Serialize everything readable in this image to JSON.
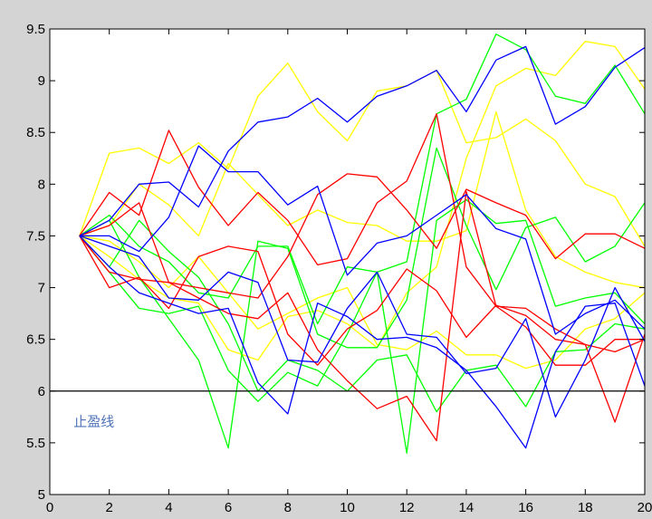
{
  "chart_data": {
    "type": "line",
    "title": "",
    "xlabel": "",
    "ylabel": "",
    "xlim": [
      0,
      20
    ],
    "ylim": [
      5,
      9.5
    ],
    "x_ticks": [
      "0",
      "2",
      "4",
      "6",
      "8",
      "10",
      "12",
      "14",
      "16",
      "18",
      "20"
    ],
    "y_ticks": [
      "5",
      "5.5",
      "6",
      "6.5",
      "7",
      "7.5",
      "8",
      "8.5",
      "9",
      "9.5"
    ],
    "grid": false,
    "background": "#ffffff",
    "reference_line": {
      "y": 6.0,
      "color": "#000000"
    },
    "annotation": {
      "text": "止盈线",
      "x": 0.8,
      "y": 5.66,
      "color": "#4f73b8"
    },
    "x": [
      1,
      2,
      3,
      4,
      5,
      6,
      7,
      8,
      9,
      10,
      11,
      12,
      13,
      14,
      15,
      16,
      17,
      18,
      19,
      20
    ],
    "series": [
      {
        "color": "#ffff00",
        "values": [
          7.5,
          8.3,
          8.35,
          8.2,
          8.4,
          8.15,
          8.85,
          9.17,
          8.7,
          8.42,
          8.9,
          8.95,
          9.1,
          8.4,
          8.45,
          8.63,
          8.42,
          8.0,
          7.88,
          7.4
        ]
      },
      {
        "color": "#ffff00",
        "values": [
          7.5,
          7.6,
          8.0,
          7.8,
          7.5,
          8.2,
          7.9,
          7.6,
          7.75,
          7.63,
          7.6,
          7.45,
          7.45,
          7.55,
          8.7,
          7.75,
          7.3,
          7.15,
          7.05,
          7.0
        ]
      },
      {
        "color": "#ffff00",
        "values": [
          7.5,
          7.45,
          7.25,
          7.0,
          7.3,
          6.95,
          6.6,
          6.75,
          6.9,
          7.0,
          6.45,
          6.4,
          6.58,
          6.35,
          6.35,
          6.22,
          6.3,
          6.6,
          6.7,
          6.95
        ]
      },
      {
        "color": "#ffff00",
        "values": [
          7.5,
          7.3,
          7.08,
          6.9,
          6.85,
          6.4,
          6.3,
          6.72,
          6.78,
          6.65,
          6.42,
          6.95,
          7.2,
          8.25,
          8.95,
          9.12,
          9.05,
          9.38,
          9.33,
          8.92
        ]
      },
      {
        "color": "#00ff00",
        "values": [
          7.5,
          7.7,
          7.4,
          7.25,
          6.95,
          6.9,
          7.4,
          7.4,
          6.65,
          7.2,
          7.15,
          7.25,
          8.68,
          8.82,
          9.45,
          9.3,
          8.85,
          8.78,
          9.15,
          8.68
        ]
      },
      {
        "color": "#00ff00",
        "values": [
          7.5,
          7.65,
          7.1,
          6.7,
          6.3,
          5.45,
          7.45,
          7.38,
          6.55,
          6.42,
          6.42,
          6.88,
          8.35,
          7.6,
          6.98,
          7.58,
          7.68,
          7.25,
          7.4,
          7.82
        ]
      },
      {
        "color": "#00ff00",
        "values": [
          7.5,
          7.15,
          6.8,
          6.75,
          6.82,
          6.2,
          5.9,
          6.18,
          6.05,
          6.55,
          7.15,
          5.4,
          7.65,
          7.85,
          7.62,
          7.65,
          6.82,
          6.9,
          6.95,
          6.65
        ]
      },
      {
        "color": "#00ff00",
        "values": [
          7.5,
          7.2,
          7.65,
          7.35,
          7.1,
          6.65,
          6.0,
          6.3,
          6.2,
          6.0,
          6.3,
          6.35,
          5.8,
          6.2,
          6.25,
          5.85,
          6.38,
          6.4,
          6.65,
          6.6
        ]
      },
      {
        "color": "#ff0000",
        "values": [
          7.5,
          7.92,
          7.7,
          8.52,
          7.97,
          7.6,
          7.92,
          7.65,
          7.22,
          7.28,
          7.82,
          8.03,
          8.68,
          7.2,
          6.82,
          6.8,
          6.6,
          6.45,
          6.38,
          6.5
        ]
      },
      {
        "color": "#ff0000",
        "values": [
          7.5,
          7.6,
          7.82,
          7.05,
          7.0,
          6.95,
          6.9,
          7.3,
          7.9,
          8.1,
          8.07,
          7.75,
          7.38,
          7.95,
          7.82,
          7.7,
          7.28,
          7.52,
          7.52,
          7.38
        ]
      },
      {
        "color": "#ff0000",
        "values": [
          7.5,
          7.0,
          7.1,
          6.8,
          7.3,
          7.4,
          7.35,
          6.55,
          6.25,
          6.6,
          6.78,
          7.18,
          6.97,
          6.52,
          6.83,
          6.73,
          6.5,
          6.45,
          5.7,
          6.55
        ]
      },
      {
        "color": "#ff0000",
        "values": [
          7.5,
          7.15,
          7.08,
          7.05,
          6.9,
          6.75,
          6.7,
          6.95,
          6.4,
          6.1,
          5.83,
          5.95,
          5.52,
          7.93,
          6.82,
          6.62,
          6.25,
          6.25,
          6.5,
          6.5
        ]
      },
      {
        "color": "#0000ff",
        "values": [
          7.5,
          7.65,
          8.0,
          8.02,
          7.78,
          8.32,
          8.6,
          8.65,
          8.83,
          8.6,
          8.85,
          8.95,
          9.1,
          8.7,
          9.2,
          9.33,
          8.58,
          8.75,
          9.13,
          9.32
        ]
      },
      {
        "color": "#0000ff",
        "values": [
          7.5,
          7.5,
          7.35,
          7.68,
          8.37,
          8.12,
          8.12,
          7.8,
          7.98,
          7.12,
          7.43,
          7.5,
          7.7,
          7.9,
          7.57,
          7.47,
          6.55,
          6.75,
          6.88,
          6.6
        ]
      },
      {
        "color": "#0000ff",
        "values": [
          7.5,
          7.4,
          7.3,
          6.9,
          6.88,
          7.15,
          7.05,
          6.3,
          6.28,
          6.8,
          7.15,
          6.55,
          6.52,
          6.17,
          6.22,
          6.7,
          5.75,
          6.3,
          7.0,
          6.48
        ]
      },
      {
        "color": "#0000ff",
        "values": [
          7.5,
          7.2,
          6.95,
          6.85,
          6.75,
          6.8,
          6.08,
          5.78,
          6.85,
          6.72,
          6.5,
          6.52,
          6.42,
          6.2,
          5.85,
          5.45,
          6.38,
          6.82,
          6.85,
          6.05
        ]
      }
    ]
  }
}
